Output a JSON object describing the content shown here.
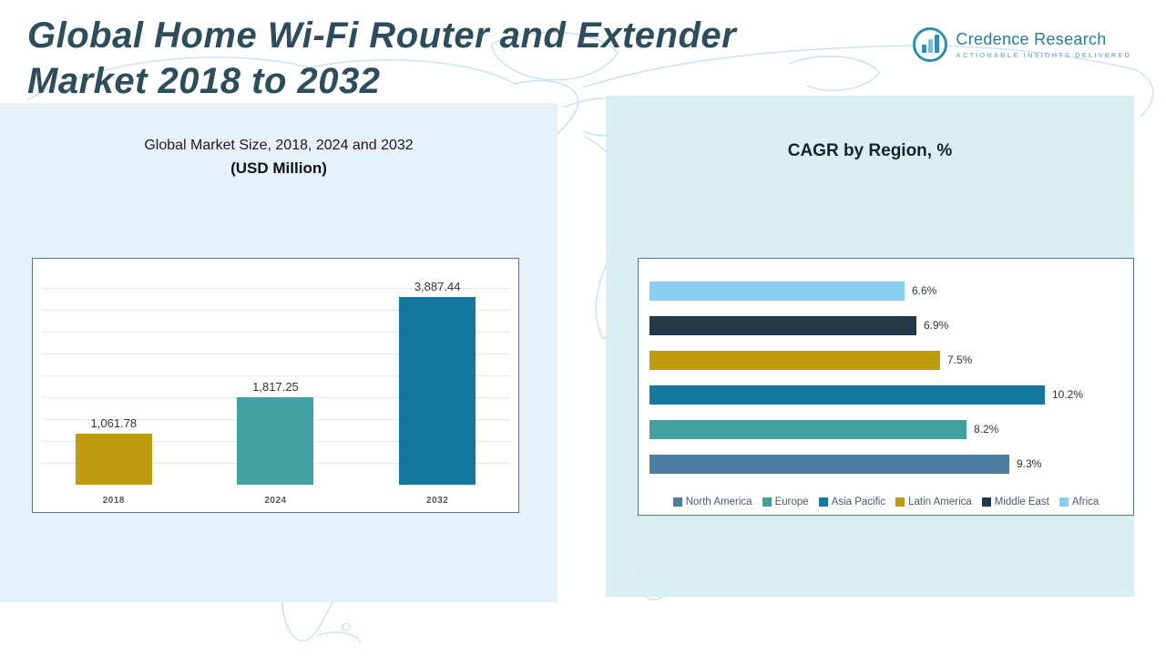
{
  "header": {
    "title_line1": "Global Home Wi-Fi Router and Extender",
    "title_line2": "Market 2018 to 2032",
    "logo": {
      "name": "Credence Research",
      "tagline": "Actionable Insights Delivered"
    }
  },
  "left_panel": {
    "chart_title": "Global Market Size, 2018, 2024 and 2032",
    "chart_subtitle": "(USD Million)"
  },
  "right_panel": {
    "chart_title": "CAGR by Region, %"
  },
  "colors": {
    "gold": "#bf9b10",
    "teal": "#41a0a0",
    "blue": "#15799e",
    "light_blue": "#86cff2",
    "dark_navy": "#22394a",
    "steel_blue": "#4a7da0",
    "title_text": "#2e4d5c"
  },
  "chart_data": [
    {
      "type": "bar",
      "title": "Global Market Size, 2018, 2024 and 2032",
      "subtitle": "(USD Million)",
      "categories": [
        "2018",
        "2024",
        "2032"
      ],
      "values": [
        1061.78,
        1817.25,
        3887.44
      ],
      "value_labels": [
        "1,061.78",
        "1,817.25",
        "3,887.44"
      ],
      "bar_colors": [
        "#bf9b10",
        "#41a0a0",
        "#15799e"
      ],
      "xlabel": "",
      "ylabel": "USD Million",
      "ylim": [
        0,
        4500
      ],
      "grid": true,
      "legend_position": "none"
    },
    {
      "type": "bar",
      "orientation": "horizontal",
      "title": "CAGR by Region, %",
      "categories": [
        "Africa",
        "Middle East",
        "Latin America",
        "Asia Pacific",
        "Europe",
        "North America"
      ],
      "values": [
        6.6,
        6.9,
        7.5,
        10.2,
        8.2,
        9.3
      ],
      "value_labels": [
        "6.6%",
        "6.9%",
        "7.5%",
        "10.2%",
        "8.2%",
        "9.3%"
      ],
      "bar_colors": [
        "#86cff2",
        "#22394a",
        "#bf9b10",
        "#15799e",
        "#41a0a0",
        "#4a7da0"
      ],
      "xlabel": "CAGR %",
      "ylabel": "",
      "xlim": [
        0,
        12
      ],
      "grid": false,
      "legend_position": "bottom",
      "legend": [
        {
          "label": "North America",
          "color": "#4a7da0"
        },
        {
          "label": "Europe",
          "color": "#41a0a0"
        },
        {
          "label": "Asia Pacific",
          "color": "#15799e"
        },
        {
          "label": "Latin America",
          "color": "#bf9b10"
        },
        {
          "label": "Middle East",
          "color": "#22394a"
        },
        {
          "label": "Africa",
          "color": "#86cff2"
        }
      ]
    }
  ]
}
